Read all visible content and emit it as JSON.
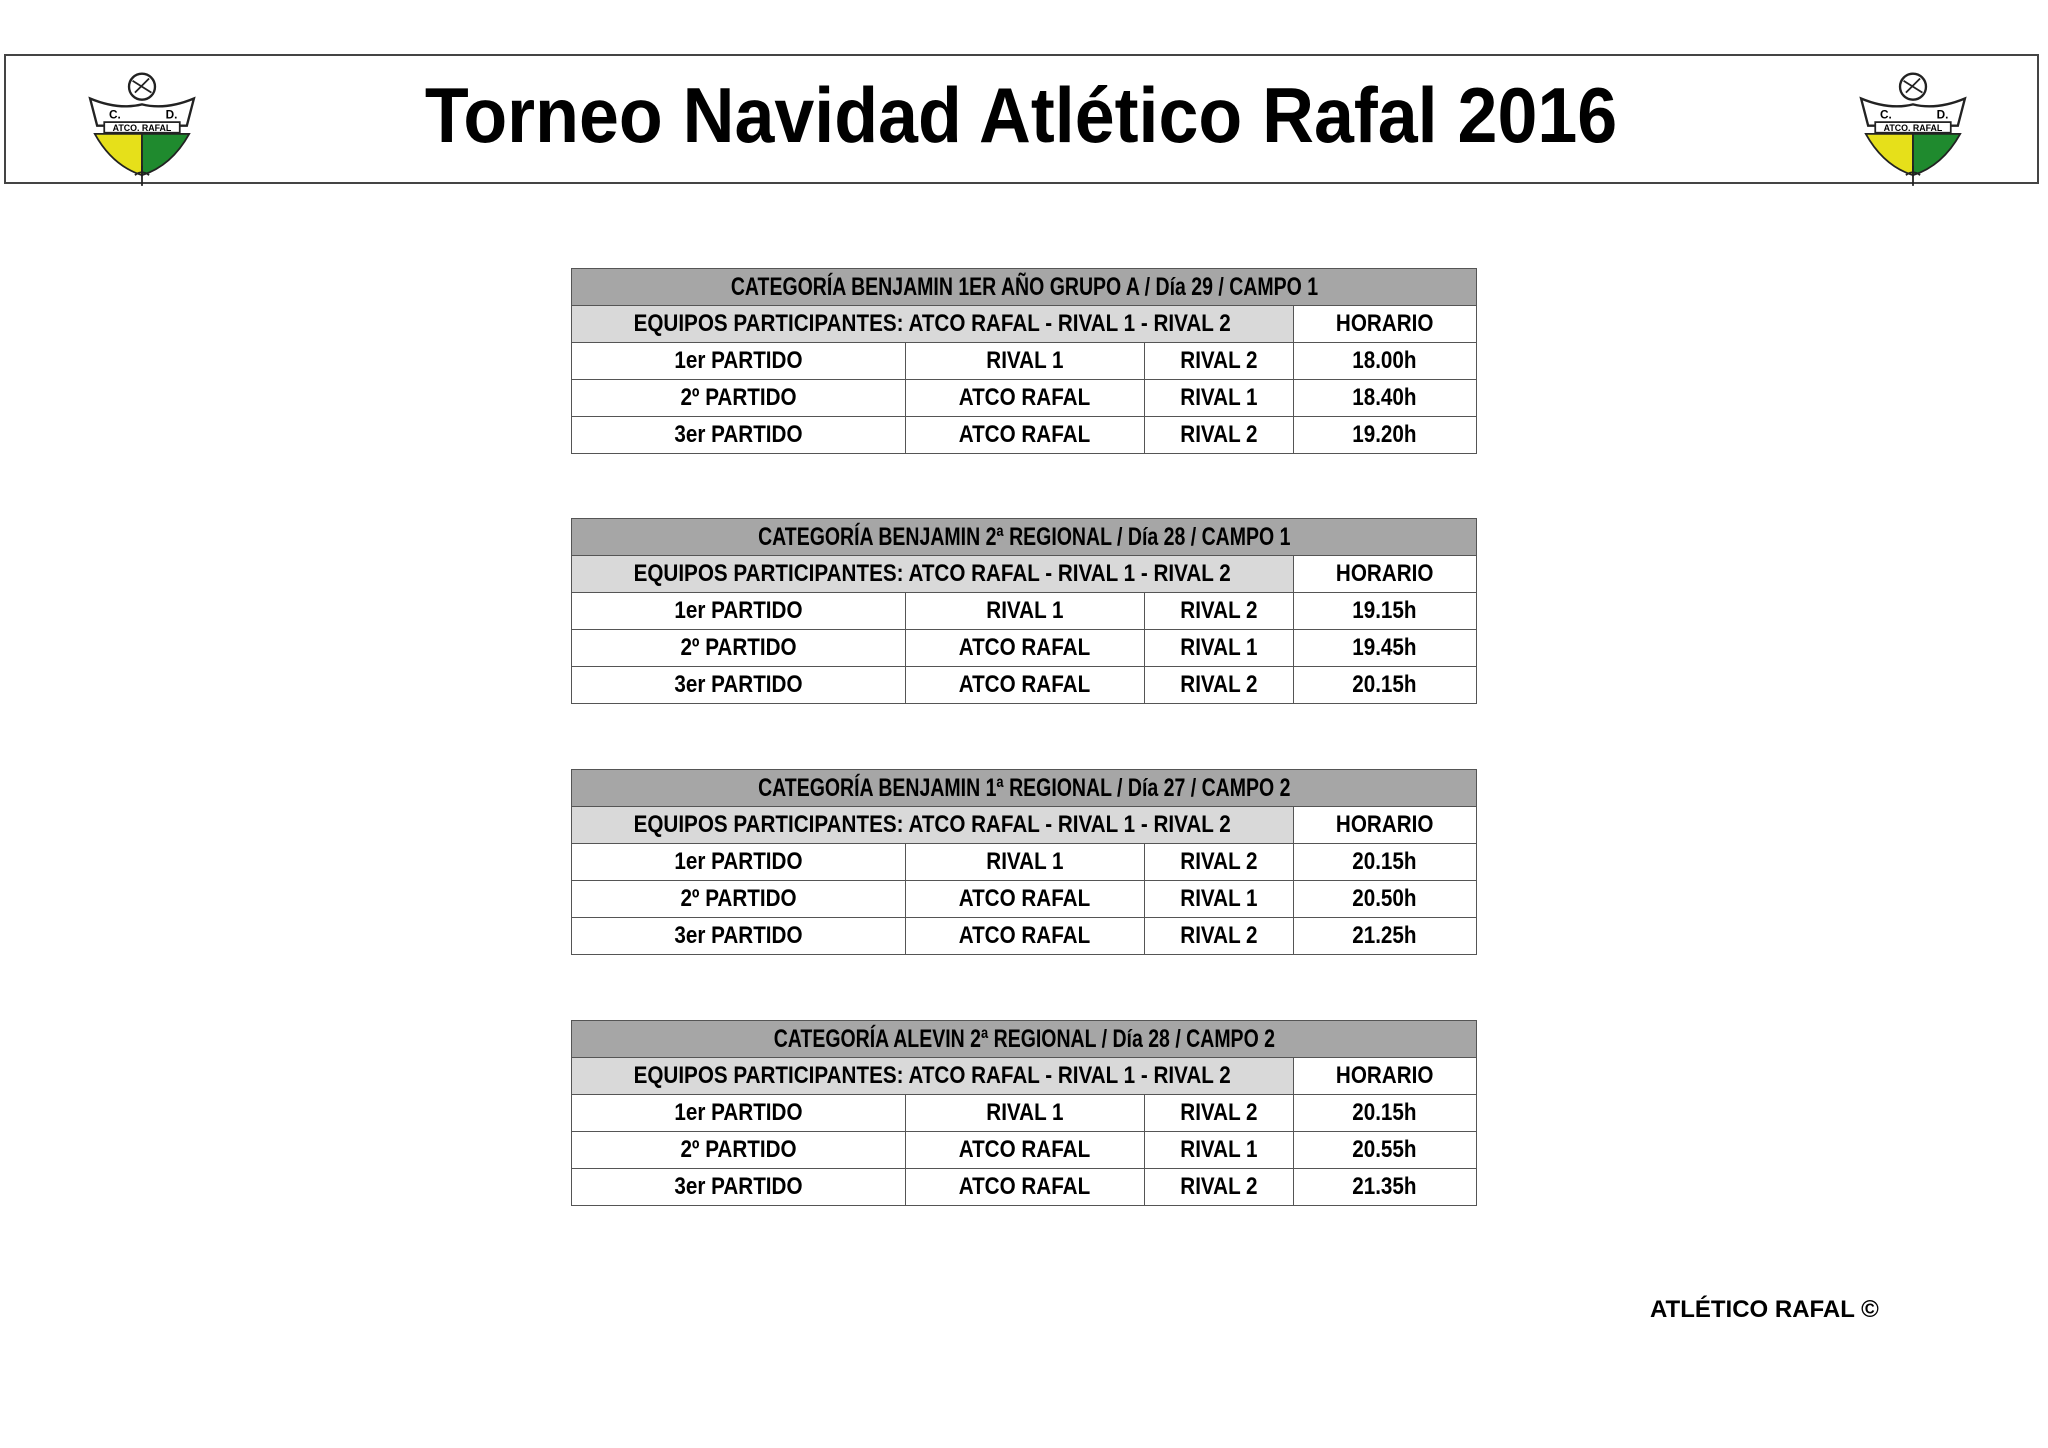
{
  "header": {
    "title": "Torneo Navidad Atlético Rafal 2016",
    "logo_text": "C. D. ATCO. RAFAL",
    "logo_colors": {
      "yellow": "#e6e01a",
      "green": "#1f8a2e"
    }
  },
  "tables": [
    {
      "category": "CATEGORÍA BENJAMIN 1ER AÑO GRUPO A / Día 29 / CAMPO 1",
      "teams": "EQUIPOS PARTICIPANTES: ATCO RAFAL - RIVAL 1 - RIVAL 2",
      "schedule_header": "HORARIO",
      "matches": [
        {
          "match": "1er PARTIDO",
          "home": "RIVAL 1",
          "away": "RIVAL 2",
          "time": "18.00h"
        },
        {
          "match": "2º PARTIDO",
          "home": "ATCO RAFAL",
          "away": "RIVAL 1",
          "time": "18.40h"
        },
        {
          "match": "3er PARTIDO",
          "home": "ATCO RAFAL",
          "away": "RIVAL 2",
          "time": "19.20h"
        }
      ]
    },
    {
      "category": "CATEGORÍA BENJAMIN 2ª REGIONAL / Día 28 / CAMPO 1",
      "teams": "EQUIPOS PARTICIPANTES: ATCO RAFAL - RIVAL 1 - RIVAL 2",
      "schedule_header": "HORARIO",
      "matches": [
        {
          "match": "1er PARTIDO",
          "home": "RIVAL 1",
          "away": "RIVAL 2",
          "time": "19.15h"
        },
        {
          "match": "2º PARTIDO",
          "home": "ATCO RAFAL",
          "away": "RIVAL 1",
          "time": "19.45h"
        },
        {
          "match": "3er PARTIDO",
          "home": "ATCO RAFAL",
          "away": "RIVAL 2",
          "time": "20.15h"
        }
      ]
    },
    {
      "category": "CATEGORÍA  BENJAMIN 1ª REGIONAL / Día 27 / CAMPO 2",
      "teams": "EQUIPOS PARTICIPANTES: ATCO RAFAL - RIVAL 1 - RIVAL 2",
      "schedule_header": "HORARIO",
      "matches": [
        {
          "match": "1er PARTIDO",
          "home": "RIVAL 1",
          "away": "RIVAL 2",
          "time": "20.15h"
        },
        {
          "match": "2º PARTIDO",
          "home": "ATCO RAFAL",
          "away": "RIVAL 1",
          "time": "20.50h"
        },
        {
          "match": "3er PARTIDO",
          "home": "ATCO RAFAL",
          "away": "RIVAL 2",
          "time": "21.25h"
        }
      ]
    },
    {
      "category": "CATEGORÍA ALEVIN 2ª REGIONAL / Día 28 / CAMPO 2",
      "teams": "EQUIPOS PARTICIPANTES: ATCO RAFAL - RIVAL 1 - RIVAL 2",
      "schedule_header": "HORARIO",
      "matches": [
        {
          "match": "1er PARTIDO",
          "home": "RIVAL 1",
          "away": "RIVAL 2",
          "time": "20.15h"
        },
        {
          "match": "2º PARTIDO",
          "home": "ATCO RAFAL",
          "away": "RIVAL 1",
          "time": "20.55h"
        },
        {
          "match": "3er PARTIDO",
          "home": "ATCO RAFAL",
          "away": "RIVAL 2",
          "time": "21.35h"
        }
      ]
    }
  ],
  "footer": {
    "copyright": "ATLÉTICO RAFAL ©"
  }
}
